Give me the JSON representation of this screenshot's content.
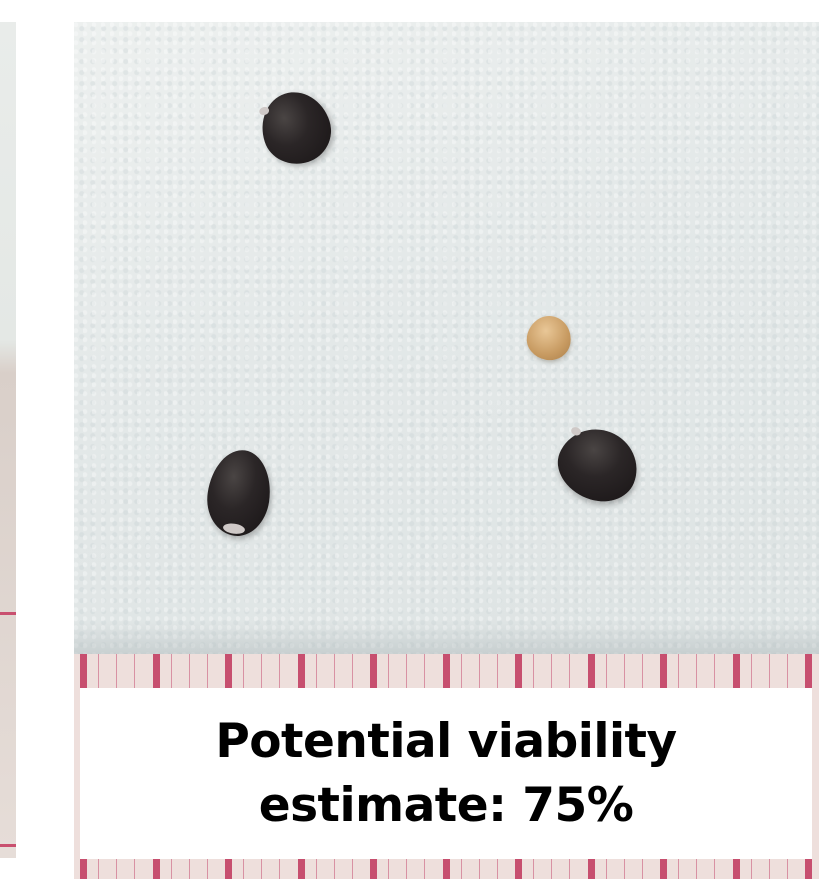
{
  "caption": {
    "line1": "Potential viability",
    "line2": "estimate: 75%"
  },
  "colors": {
    "paper": "#e7ebea",
    "ruler_background": "#eedfdc",
    "ruler_marks": "#c23f63",
    "dark_seed": "#221d1e",
    "pale_seed": "#c79a61",
    "caption_background": "#ffffff",
    "caption_text": "#000000"
  },
  "seeds": [
    {
      "kind": "dark"
    },
    {
      "kind": "pale"
    },
    {
      "kind": "dark"
    },
    {
      "kind": "dark"
    }
  ]
}
